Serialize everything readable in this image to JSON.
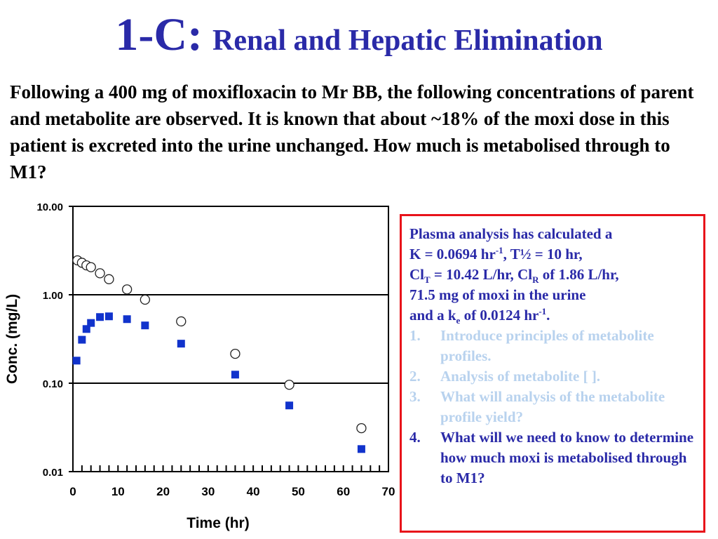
{
  "title": {
    "number": "1-C:",
    "text": "Renal and Hepatic Elimination"
  },
  "question": "Following a 400 mg of moxifloxacin to Mr BB, the following concentrations of parent and metabolite are observed.  It is known that about ~18% of the moxi dose in this patient is excreted into the urine unchanged.  How much is metabolised through to M1?",
  "info_box": {
    "l1": "Plasma analysis has calculated a",
    "l2a": "K = 0.0694 hr",
    "l2_sup": "-1",
    "l2b": ", T½ = 10 hr,",
    "l3a": "Cl",
    "l3_sub1": "T",
    "l3b": " = 10.42 L/hr, Cl",
    "l3_sub2": "R",
    "l3c": " of 1.86 L/hr,",
    "l4": "71.5 mg of moxi in the urine",
    "l5a": "and a k",
    "l5_sub": "e",
    "l5b": " of 0.0124 hr",
    "l5_sup": "-1",
    "l5c": ".",
    "items": [
      {
        "num": "1.",
        "text": "Introduce principles of metabolite profiles."
      },
      {
        "num": "2.",
        "text": "Analysis of metabolite [ ]."
      },
      {
        "num": "3.",
        "text": "What will analysis of the metabolite profile yield?"
      },
      {
        "num": "4.",
        "text": "What will we need to know to determine how much moxi is metabolised through to M1?"
      }
    ]
  },
  "colors": {
    "title": "#2a2aa8",
    "box_border": "#e8131a",
    "faded_item": "#b8d2ee",
    "metabolite_marker": "#1133cc"
  },
  "chart_data": {
    "type": "scatter",
    "xlabel": "Time (hr)",
    "ylabel": "Conc. (mg/L)",
    "xlim": [
      0,
      70
    ],
    "ylim": [
      0.01,
      10
    ],
    "y_scale": "log",
    "x_ticks": [
      "0",
      "10",
      "20",
      "30",
      "40",
      "50",
      "60",
      "70"
    ],
    "y_ticks": [
      "10.00",
      "1.00",
      "0.10",
      "0.01"
    ],
    "gridlines": "horizontal at 1.00 and 0.10",
    "series": [
      {
        "marker": "open-circle",
        "x": [
          1,
          2,
          3,
          4,
          6,
          8,
          12,
          16,
          24,
          36,
          48,
          64
        ],
        "y": [
          2.45,
          2.3,
          2.15,
          2.05,
          1.75,
          1.5,
          1.15,
          0.88,
          0.5,
          0.215,
          0.096,
          0.031
        ]
      },
      {
        "marker": "filled-square",
        "x": [
          0.8,
          2,
          3,
          4,
          6,
          8,
          12,
          16,
          24,
          36,
          48,
          64
        ],
        "y": [
          0.18,
          0.31,
          0.41,
          0.48,
          0.56,
          0.57,
          0.53,
          0.45,
          0.28,
          0.125,
          0.056,
          0.018
        ]
      }
    ]
  }
}
